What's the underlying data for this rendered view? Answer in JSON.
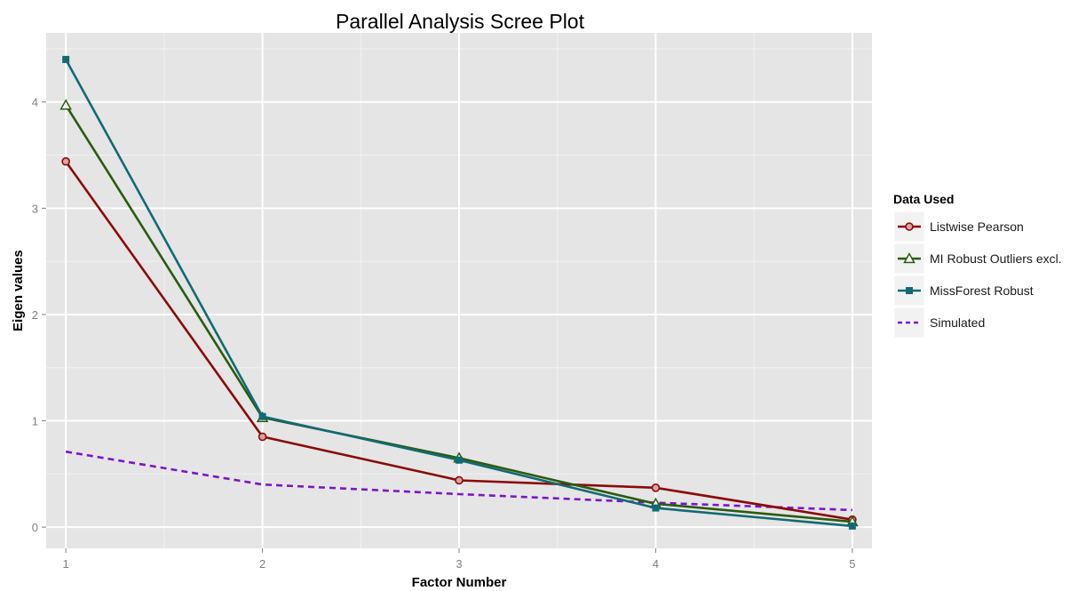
{
  "chart_data": {
    "type": "line",
    "title": "Parallel Analysis Scree Plot",
    "xlabel": "Factor Number",
    "ylabel": "Eigen values",
    "x": [
      1,
      2,
      3,
      4,
      5
    ],
    "xlim": [
      0.9,
      5.1
    ],
    "ylim": [
      -0.2,
      4.65
    ],
    "x_ticks": [
      "1",
      "2",
      "3",
      "4",
      "5"
    ],
    "y_ticks": [
      "0",
      "1",
      "2",
      "3",
      "4"
    ],
    "grid": true,
    "legend_position": "right",
    "legend_title": "Data Used",
    "series": [
      {
        "name": "Listwise Pearson",
        "values": [
          3.44,
          0.85,
          0.44,
          0.37,
          0.07
        ],
        "color": "#8b0a0a",
        "marker": "circle",
        "dash": "solid"
      },
      {
        "name": "MI Robust Outliers excl.",
        "values": [
          3.97,
          1.03,
          0.65,
          0.22,
          0.05
        ],
        "color": "#2a5b0f",
        "marker": "triangle",
        "dash": "solid"
      },
      {
        "name": "MissForest Robust",
        "values": [
          4.4,
          1.04,
          0.63,
          0.18,
          0.01
        ],
        "color": "#126a73",
        "marker": "square",
        "dash": "solid"
      },
      {
        "name": "Simulated",
        "values": [
          0.71,
          0.4,
          0.31,
          0.23,
          0.16
        ],
        "color": "#7a16c8",
        "marker": "none",
        "dash": "dashed"
      }
    ]
  }
}
